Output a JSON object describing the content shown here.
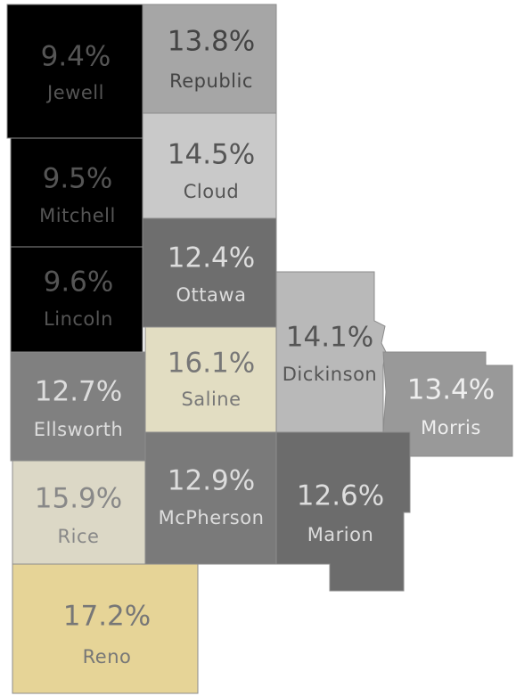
{
  "counties": [
    {
      "name": "Jewell",
      "label": "9.4%",
      "color": "#000000",
      "text_color": "#555555"
    },
    {
      "name": "Republic",
      "label": "13.8%",
      "color": "#a6a6a6",
      "text_color": "#444444"
    },
    {
      "name": "Mitchell",
      "label": "9.5%",
      "color": "#000000",
      "text_color": "#555555"
    },
    {
      "name": "Cloud",
      "label": "14.5%",
      "color": "#c9c9c9",
      "text_color": "#555555"
    },
    {
      "name": "Lincoln",
      "label": "9.6%",
      "color": "#000000",
      "text_color": "#555555"
    },
    {
      "name": "Ottawa",
      "label": "12.4%",
      "color": "#6e6e6e",
      "text_color": "#dddddd"
    },
    {
      "name": "Saline",
      "label": "16.1%",
      "color": "#e2ddc2",
      "text_color": "#777777"
    },
    {
      "name": "Dickinson",
      "label": "14.1%",
      "color": "#b9b9b9",
      "text_color": "#555555"
    },
    {
      "name": "Morris",
      "label": "13.4%",
      "color": "#999999",
      "text_color": "#eeeeee"
    },
    {
      "name": "Ellsworth",
      "label": "12.7%",
      "color": "#808080",
      "text_color": "#dddddd"
    },
    {
      "name": "Rice",
      "label": "15.9%",
      "color": "#dcd8c6",
      "text_color": "#888888"
    },
    {
      "name": "McPherson",
      "label": "12.9%",
      "color": "#7a7a7a",
      "text_color": "#dddddd"
    },
    {
      "name": "Marion",
      "label": "12.6%",
      "color": "#6c6c6c",
      "text_color": "#dddddd"
    },
    {
      "name": "Reno",
      "label": "17.2%",
      "color": "#e6d497",
      "text_color": "#777777"
    }
  ]
}
